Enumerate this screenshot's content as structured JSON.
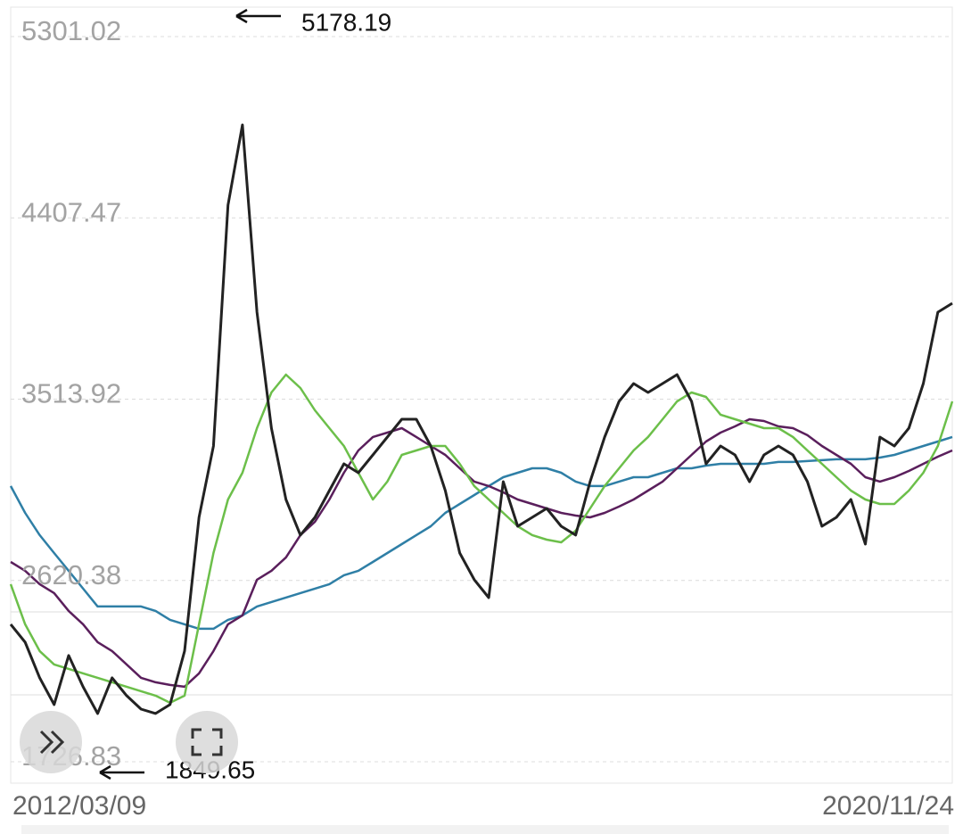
{
  "chart_data": {
    "type": "line",
    "categories": [
      "2012/03/09",
      null,
      null,
      null,
      null,
      null,
      null,
      null,
      null,
      null,
      null,
      null,
      null,
      null,
      null,
      null,
      null,
      null,
      null,
      null,
      null,
      null,
      null,
      null,
      null,
      null,
      null,
      null,
      null,
      null,
      null,
      null,
      null,
      null,
      null,
      null,
      null,
      null,
      null,
      null,
      null,
      null,
      null,
      null,
      null,
      null,
      null,
      null,
      null,
      null,
      null,
      null,
      null,
      null,
      null,
      null,
      null,
      null,
      null,
      null,
      null,
      null,
      null,
      null,
      null,
      "2020/11/24"
    ],
    "series": [
      {
        "color": "#2f7fa6",
        "values": [
          3067.9,
          2935.9,
          2826.1,
          2738.1,
          2650.3,
          2562.4,
          2474.5,
          2474.5,
          2474.5,
          2474.5,
          2452.5,
          2408.5,
          2386.5,
          2364.5,
          2364.5,
          2408.5,
          2430.5,
          2474.5,
          2496.5,
          2518.5,
          2540.4,
          2562.4,
          2584.3,
          2628.3,
          2650.3,
          2694.2,
          2738.1,
          2782.1,
          2826.1,
          2870.0,
          2935.9,
          2979.9,
          3023.9,
          3067.9,
          3111.8,
          3133.8,
          3155.8,
          3155.8,
          3133.8,
          3089.9,
          3067.9,
          3067.9,
          3089.9,
          3111.8,
          3111.8,
          3133.8,
          3155.8,
          3155.8,
          3169.0,
          3177.8,
          3177.8,
          3177.8,
          3177.8,
          3186.6,
          3186.6,
          3191.0,
          3195.4,
          3199.8,
          3199.8,
          3199.8,
          3208.5,
          3221.7,
          3243.7,
          3265.7,
          3287.7,
          3309.7
        ]
      },
      {
        "color": "#5a1f5c",
        "values": [
          2694.2,
          2650.3,
          2584.3,
          2540.4,
          2452.5,
          2386.5,
          2298.6,
          2254.6,
          2188.7,
          2122.7,
          2100.8,
          2087.6,
          2078.8,
          2144.7,
          2254.6,
          2386.5,
          2430.5,
          2606.3,
          2650.3,
          2716.2,
          2826.1,
          2892.0,
          3001.9,
          3133.8,
          3243.7,
          3309.7,
          3331.6,
          3353.6,
          3309.7,
          3265.7,
          3221.7,
          3155.8,
          3089.9,
          3067.9,
          3037.1,
          3001.9,
          2979.9,
          2957.9,
          2935.9,
          2922.7,
          2914.0,
          2935.9,
          2966.8,
          3001.9,
          3045.9,
          3089.9,
          3155.8,
          3221.7,
          3287.7,
          3331.6,
          3362.4,
          3397.6,
          3388.8,
          3362.4,
          3353.6,
          3318.5,
          3265.7,
          3221.7,
          3177.8,
          3111.8,
          3089.9,
          3111.8,
          3142.6,
          3177.8,
          3212.9,
          3243.7
        ]
      },
      {
        "color": "#6cbf4a",
        "values": [
          2584.3,
          2386.5,
          2254.6,
          2188.7,
          2166.7,
          2144.7,
          2122.7,
          2100.8,
          2078.8,
          2056.8,
          2034.8,
          1999.7,
          2034.8,
          2386.5,
          2738.1,
          3001.9,
          3133.8,
          3353.6,
          3529.5,
          3617.4,
          3551.4,
          3441.5,
          3353.6,
          3265.7,
          3133.8,
          3001.9,
          3089.9,
          3221.7,
          3243.7,
          3265.7,
          3265.7,
          3177.8,
          3067.9,
          3001.9,
          2935.9,
          2870.0,
          2826.1,
          2804.1,
          2790.9,
          2848.0,
          2957.9,
          3067.9,
          3155.8,
          3243.7,
          3309.7,
          3397.6,
          3485.5,
          3529.5,
          3507.5,
          3419.6,
          3397.6,
          3375.6,
          3353.6,
          3353.6,
          3309.7,
          3243.7,
          3177.8,
          3111.8,
          3045.9,
          3001.9,
          2979.9,
          2979.9,
          3045.9,
          3133.8,
          3265.7,
          3485.5
        ]
      },
      {
        "color": "#222222",
        "values": [
          2386.5,
          2298.5,
          2122.7,
          1990.8,
          2232.6,
          2078.7,
          1946.9,
          2122.7,
          2034.8,
          1968.8,
          1946.9,
          1990.8,
          2254.6,
          2914.0,
          3265.7,
          4452.6,
          4848.2,
          3925,
          3353.6,
          3001.9,
          2826.1,
          2914.0,
          3045.9,
          3177.7,
          3133.8,
          3221.7,
          3309.6,
          3397.5,
          3397.5,
          3265.7,
          3045.9,
          2738.1,
          2606.3,
          2518.3,
          3089.8,
          2870,
          2914,
          2957.9,
          2870,
          2826.1,
          3089.8,
          3309.6,
          3485.5,
          3573.4,
          3529.4,
          3573.4,
          3617.3,
          3485.5,
          3177.7,
          3265.7,
          3221.7,
          3089.8,
          3221.7,
          3265.7,
          3221.7,
          3089.8,
          2870,
          2914,
          3001.9,
          2782.1,
          3309.6,
          3265.7,
          3353.6,
          3573.4,
          3925,
          3969
        ]
      }
    ],
    "ylim": [
      1603.7,
      5419.7
    ],
    "yticks": [
      1726.83,
      2620.38,
      3513.92,
      4407.47,
      5301.02
    ],
    "grid": true,
    "annotations": [
      "5178.19",
      "1849.65"
    ]
  }
}
